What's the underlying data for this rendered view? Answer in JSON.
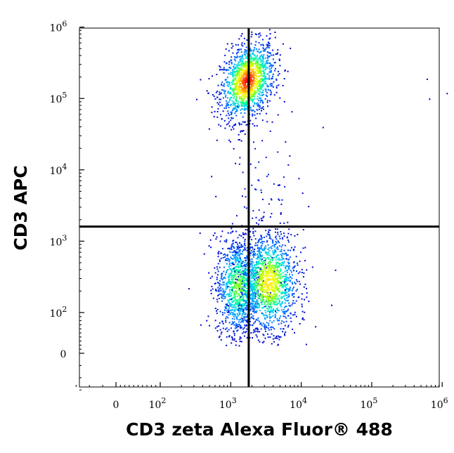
{
  "chart_data": {
    "type": "scatter",
    "plot_kind": "flow-cytometry-density-dot-plot",
    "xlabel": "CD3 zeta Alexa Fluor® 488",
    "ylabel": "CD3 APC",
    "x_scale": "biexponential",
    "y_scale": "biexponential",
    "xlim": [
      -300,
      1200000
    ],
    "ylim": [
      -300,
      1200000
    ],
    "x_ticks": [
      {
        "value": 0,
        "label": "0",
        "exp": ""
      },
      {
        "value": 100,
        "label": "10",
        "exp": "2"
      },
      {
        "value": 1000,
        "label": "10",
        "exp": "3"
      },
      {
        "value": 10000,
        "label": "10",
        "exp": "4"
      },
      {
        "value": 100000,
        "label": "10",
        "exp": "5"
      },
      {
        "value": 1000000,
        "label": "10",
        "exp": "6"
      }
    ],
    "y_ticks": [
      {
        "value": 0,
        "label": "0",
        "exp": ""
      },
      {
        "value": 100,
        "label": "10",
        "exp": "2"
      },
      {
        "value": 1000,
        "label": "10",
        "exp": "3"
      },
      {
        "value": 10000,
        "label": "10",
        "exp": "4"
      },
      {
        "value": 100000,
        "label": "10",
        "exp": "5"
      },
      {
        "value": 1000000,
        "label": "10",
        "exp": "6"
      }
    ],
    "quadrant_gate": {
      "x": 1800,
      "y": 1600
    },
    "populations": [
      {
        "id": "cd3-positive",
        "center_x": 1700,
        "center_y": 180000,
        "spread_x_decades": 0.12,
        "spread_y_decades": 0.16,
        "count": 1400,
        "peak_density": 1.0
      },
      {
        "id": "cd3-negative-cd3zeta-low",
        "center_x": 1250,
        "center_y": 240,
        "spread_x_decades": 0.1,
        "spread_y_decades": 0.22,
        "count": 1100,
        "peak_density": 0.55
      },
      {
        "id": "cd3-negative-cd3zeta-high",
        "center_x": 3400,
        "center_y": 270,
        "spread_x_decades": 0.13,
        "spread_y_decades": 0.22,
        "count": 1400,
        "peak_density": 0.75
      },
      {
        "id": "intermediate-events",
        "center_x": 2600,
        "center_y": 5000,
        "spread_x_decades": 0.18,
        "spread_y_decades": 0.45,
        "count": 90,
        "peak_density": 0.05
      }
    ],
    "outliers": [
      {
        "x": 600000,
        "y": 190000
      },
      {
        "x": 650000,
        "y": 100000
      },
      {
        "x": 1150000,
        "y": 120000
      },
      {
        "x": 20000,
        "y": 40000
      },
      {
        "x": 30000,
        "y": 400
      },
      {
        "x": 250,
        "y": 220
      }
    ],
    "colormap": [
      "#0000cc",
      "#0066ff",
      "#00ccff",
      "#00ff99",
      "#99ff00",
      "#ffff00",
      "#ff9900",
      "#ff0000"
    ],
    "grid": false,
    "legend": "none"
  }
}
